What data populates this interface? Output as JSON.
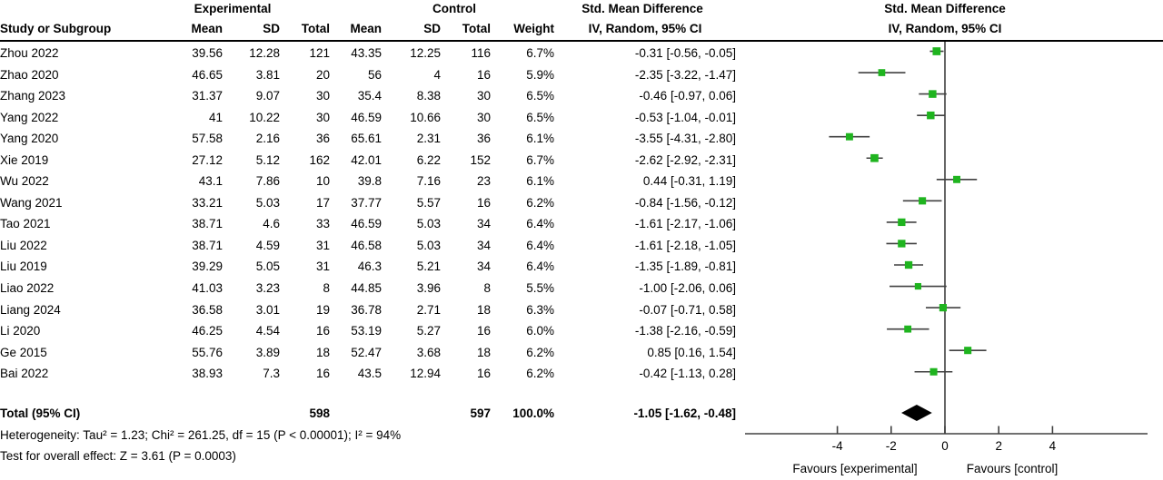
{
  "header": {
    "group1_label": "Experimental",
    "group2_label": "Control",
    "effect_title": "Std. Mean Difference",
    "effect_subtitle": "IV, Random, 95% CI",
    "plot_title": "Std. Mean Difference",
    "plot_subtitle": "IV, Random, 95% CI",
    "columns": [
      "Study or Subgroup",
      "Mean",
      "SD",
      "Total",
      "Mean",
      "SD",
      "Total",
      "Weight"
    ]
  },
  "chart_data": {
    "type": "forest",
    "effect_measure": "Std. Mean Difference",
    "method": "IV, Random, 95% CI",
    "marker_color": "#1fb41f",
    "line_color": "#404040",
    "studies": [
      {
        "name": "Zhou 2022",
        "exp_mean": "39.56",
        "exp_sd": "12.28",
        "exp_total": "121",
        "ctl_mean": "43.35",
        "ctl_sd": "12.25",
        "ctl_total": "116",
        "weight": "6.7%",
        "ci_label": "-0.31 [-0.56, -0.05]",
        "est": -0.31,
        "lo": -0.56,
        "hi": -0.05
      },
      {
        "name": "Zhao 2020",
        "exp_mean": "46.65",
        "exp_sd": "3.81",
        "exp_total": "20",
        "ctl_mean": "56",
        "ctl_sd": "4",
        "ctl_total": "16",
        "weight": "5.9%",
        "ci_label": "-2.35 [-3.22, -1.47]",
        "est": -2.35,
        "lo": -3.22,
        "hi": -1.47
      },
      {
        "name": "Zhang 2023",
        "exp_mean": "31.37",
        "exp_sd": "9.07",
        "exp_total": "30",
        "ctl_mean": "35.4",
        "ctl_sd": "8.38",
        "ctl_total": "30",
        "weight": "6.5%",
        "ci_label": "-0.46 [-0.97, 0.06]",
        "est": -0.46,
        "lo": -0.97,
        "hi": 0.06
      },
      {
        "name": "Yang 2022",
        "exp_mean": "41",
        "exp_sd": "10.22",
        "exp_total": "30",
        "ctl_mean": "46.59",
        "ctl_sd": "10.66",
        "ctl_total": "30",
        "weight": "6.5%",
        "ci_label": "-0.53 [-1.04, -0.01]",
        "est": -0.53,
        "lo": -1.04,
        "hi": -0.01
      },
      {
        "name": "Yang 2020",
        "exp_mean": "57.58",
        "exp_sd": "2.16",
        "exp_total": "36",
        "ctl_mean": "65.61",
        "ctl_sd": "2.31",
        "ctl_total": "36",
        "weight": "6.1%",
        "ci_label": "-3.55 [-4.31, -2.80]",
        "est": -3.55,
        "lo": -4.31,
        "hi": -2.8
      },
      {
        "name": "Xie 2019",
        "exp_mean": "27.12",
        "exp_sd": "5.12",
        "exp_total": "162",
        "ctl_mean": "42.01",
        "ctl_sd": "6.22",
        "ctl_total": "152",
        "weight": "6.7%",
        "ci_label": "-2.62 [-2.92, -2.31]",
        "est": -2.62,
        "lo": -2.92,
        "hi": -2.31
      },
      {
        "name": "Wu 2022",
        "exp_mean": "43.1",
        "exp_sd": "7.86",
        "exp_total": "10",
        "ctl_mean": "39.8",
        "ctl_sd": "7.16",
        "ctl_total": "23",
        "weight": "6.1%",
        "ci_label": "0.44 [-0.31, 1.19]",
        "est": 0.44,
        "lo": -0.31,
        "hi": 1.19
      },
      {
        "name": "Wang 2021",
        "exp_mean": "33.21",
        "exp_sd": "5.03",
        "exp_total": "17",
        "ctl_mean": "37.77",
        "ctl_sd": "5.57",
        "ctl_total": "16",
        "weight": "6.2%",
        "ci_label": "-0.84 [-1.56, -0.12]",
        "est": -0.84,
        "lo": -1.56,
        "hi": -0.12
      },
      {
        "name": "Tao 2021",
        "exp_mean": "38.71",
        "exp_sd": "4.6",
        "exp_total": "33",
        "ctl_mean": "46.59",
        "ctl_sd": "5.03",
        "ctl_total": "34",
        "weight": "6.4%",
        "ci_label": "-1.61 [-2.17, -1.06]",
        "est": -1.61,
        "lo": -2.17,
        "hi": -1.06
      },
      {
        "name": "Liu 2022",
        "exp_mean": "38.71",
        "exp_sd": "4.59",
        "exp_total": "31",
        "ctl_mean": "46.58",
        "ctl_sd": "5.03",
        "ctl_total": "34",
        "weight": "6.4%",
        "ci_label": "-1.61 [-2.18, -1.05]",
        "est": -1.61,
        "lo": -2.18,
        "hi": -1.05
      },
      {
        "name": "Liu 2019",
        "exp_mean": "39.29",
        "exp_sd": "5.05",
        "exp_total": "31",
        "ctl_mean": "46.3",
        "ctl_sd": "5.21",
        "ctl_total": "34",
        "weight": "6.4%",
        "ci_label": "-1.35 [-1.89, -0.81]",
        "est": -1.35,
        "lo": -1.89,
        "hi": -0.81
      },
      {
        "name": "Liao 2022",
        "exp_mean": "41.03",
        "exp_sd": "3.23",
        "exp_total": "8",
        "ctl_mean": "44.85",
        "ctl_sd": "3.96",
        "ctl_total": "8",
        "weight": "5.5%",
        "ci_label": "-1.00 [-2.06, 0.06]",
        "est": -1.0,
        "lo": -2.06,
        "hi": 0.06
      },
      {
        "name": "Liang 2024",
        "exp_mean": "36.58",
        "exp_sd": "3.01",
        "exp_total": "19",
        "ctl_mean": "36.78",
        "ctl_sd": "2.71",
        "ctl_total": "18",
        "weight": "6.3%",
        "ci_label": "-0.07 [-0.71, 0.58]",
        "est": -0.07,
        "lo": -0.71,
        "hi": 0.58
      },
      {
        "name": "Li 2020",
        "exp_mean": "46.25",
        "exp_sd": "4.54",
        "exp_total": "16",
        "ctl_mean": "53.19",
        "ctl_sd": "5.27",
        "ctl_total": "16",
        "weight": "6.0%",
        "ci_label": "-1.38 [-2.16, -0.59]",
        "est": -1.38,
        "lo": -2.16,
        "hi": -0.59
      },
      {
        "name": "Ge 2015",
        "exp_mean": "55.76",
        "exp_sd": "3.89",
        "exp_total": "18",
        "ctl_mean": "52.47",
        "ctl_sd": "3.68",
        "ctl_total": "18",
        "weight": "6.2%",
        "ci_label": "0.85 [0.16, 1.54]",
        "est": 0.85,
        "lo": 0.16,
        "hi": 1.54
      },
      {
        "name": "Bai 2022",
        "exp_mean": "38.93",
        "exp_sd": "7.3",
        "exp_total": "16",
        "ctl_mean": "43.5",
        "ctl_sd": "12.94",
        "ctl_total": "16",
        "weight": "6.2%",
        "ci_label": "-0.42 [-1.13, 0.28]",
        "est": -0.42,
        "lo": -1.13,
        "hi": 0.28
      }
    ],
    "total": {
      "label": "Total (95% CI)",
      "exp_total": "598",
      "ctl_total": "597",
      "weight": "100.0%",
      "ci_label": "-1.05 [-1.62, -0.48]",
      "est": -1.05,
      "lo": -1.62,
      "hi": -0.48
    },
    "heterogeneity": "Heterogeneity: Tau² = 1.23; Chi² = 261.25, df = 15 (P < 0.00001); I² = 94%",
    "overall_effect": "Test for overall effect: Z = 3.61 (P = 0.0003)",
    "axis": {
      "ticks": [
        "-4",
        "-2",
        "0",
        "2",
        "4"
      ],
      "tick_values": [
        -4,
        -2,
        0,
        2,
        4
      ],
      "xmin": -7.4,
      "xmax": 7.5,
      "favours_left": "Favours [experimental]",
      "favours_right": "Favours [control]"
    }
  }
}
